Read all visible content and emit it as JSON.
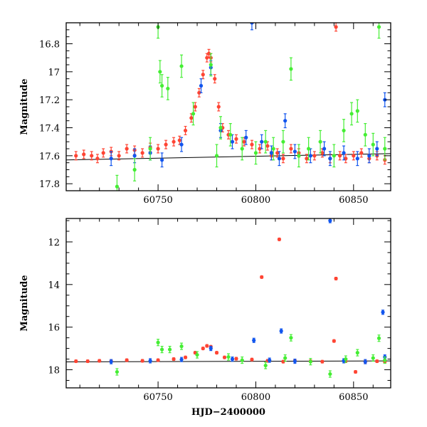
{
  "chart_data": [
    {
      "type": "scatter",
      "panel": "top",
      "title": "",
      "xlabel": "",
      "ylabel": "Magnitude",
      "xlim": [
        60703,
        60869
      ],
      "ylim": [
        17.85,
        16.65
      ],
      "y_inverted": true,
      "x_ticks": [
        60750,
        60800,
        60850
      ],
      "y_ticks": [
        16.8,
        17,
        17.2,
        17.4,
        17.6,
        17.8
      ],
      "y_tick_labels": [
        "16.8",
        "17",
        "17.2",
        "17.4",
        "17.6",
        "17.8"
      ],
      "reference_line": {
        "start": [
          60703,
          17.63
        ],
        "end": [
          60869,
          17.585
        ]
      },
      "series": [
        {
          "color": "#ff4433",
          "error_bar": 0.03,
          "points": [
            [
              60708,
              17.6
            ],
            [
              60712,
              17.59
            ],
            [
              60716,
              17.6
            ],
            [
              60719,
              17.62
            ],
            [
              60722,
              17.58
            ],
            [
              60726,
              17.57
            ],
            [
              60730,
              17.6
            ],
            [
              60734,
              17.55
            ],
            [
              60738,
              17.56
            ],
            [
              60742,
              17.58
            ],
            [
              60746,
              17.54
            ],
            [
              60750,
              17.55
            ],
            [
              60754,
              17.52
            ],
            [
              60758,
              17.5
            ],
            [
              60761,
              17.49
            ],
            [
              60764,
              17.42
            ],
            [
              60767,
              17.33
            ],
            [
              60769,
              17.25
            ],
            [
              60771,
              17.15
            ],
            [
              60773,
              17.02
            ],
            [
              60775,
              16.9
            ],
            [
              60776,
              16.87
            ],
            [
              60777,
              16.9
            ],
            [
              60779,
              17.05
            ],
            [
              60781,
              17.25
            ],
            [
              60783,
              17.4
            ],
            [
              60786,
              17.45
            ],
            [
              60790,
              17.48
            ],
            [
              60794,
              17.5
            ],
            [
              60798,
              17.52
            ],
            [
              60802,
              17.55
            ],
            [
              60806,
              17.53
            ],
            [
              60808,
              17.6
            ],
            [
              60811,
              17.58
            ],
            [
              60814,
              17.62
            ],
            [
              60818,
              17.55
            ],
            [
              60822,
              17.58
            ],
            [
              60826,
              17.62
            ],
            [
              60830,
              17.6
            ],
            [
              60834,
              17.58
            ],
            [
              60838,
              17.62
            ],
            [
              60841,
              16.68
            ],
            [
              60843,
              17.6
            ],
            [
              60846,
              17.62
            ],
            [
              60850,
              17.6
            ],
            [
              60854,
              17.58
            ],
            [
              60858,
              17.62
            ],
            [
              60862,
              17.6
            ],
            [
              60866,
              17.63
            ]
          ]
        },
        {
          "color": "#1155ee",
          "error_bar": 0.05,
          "points": [
            [
              60726,
              17.62
            ],
            [
              60738,
              17.6
            ],
            [
              60746,
              17.58
            ],
            [
              60752,
              17.63
            ],
            [
              60762,
              17.52
            ],
            [
              60772,
              17.1
            ],
            [
              60777,
              16.97
            ],
            [
              60782,
              17.42
            ],
            [
              60788,
              17.5
            ],
            [
              60795,
              17.47
            ],
            [
              60798,
              16.65
            ],
            [
              60803,
              17.5
            ],
            [
              60808,
              17.58
            ],
            [
              60812,
              17.62
            ],
            [
              60815,
              17.35
            ],
            [
              60820,
              17.57
            ],
            [
              60828,
              17.6
            ],
            [
              60835,
              17.55
            ],
            [
              60838,
              17.62
            ],
            [
              60845,
              17.58
            ],
            [
              60852,
              17.62
            ],
            [
              60858,
              17.6
            ],
            [
              60862,
              17.55
            ],
            [
              60866,
              17.2
            ]
          ]
        },
        {
          "color": "#44ee33",
          "error_bar": 0.08,
          "points": [
            [
              60729,
              17.82
            ],
            [
              60738,
              17.7
            ],
            [
              60746,
              17.55
            ],
            [
              60750,
              16.68
            ],
            [
              60751,
              17.0
            ],
            [
              60752,
              17.1
            ],
            [
              60755,
              17.12
            ],
            [
              60762,
              16.96
            ],
            [
              60768,
              17.3
            ],
            [
              60777,
              16.95
            ],
            [
              60780,
              17.6
            ],
            [
              60782,
              17.4
            ],
            [
              60787,
              17.45
            ],
            [
              60793,
              17.55
            ],
            [
              60800,
              17.58
            ],
            [
              60805,
              17.5
            ],
            [
              60809,
              17.55
            ],
            [
              60814,
              17.5
            ],
            [
              60818,
              16.98
            ],
            [
              60822,
              17.6
            ],
            [
              60827,
              17.55
            ],
            [
              60833,
              17.5
            ],
            [
              60840,
              17.6
            ],
            [
              60845,
              17.42
            ],
            [
              60849,
              17.3
            ],
            [
              60852,
              17.28
            ],
            [
              60856,
              17.45
            ],
            [
              60860,
              17.52
            ],
            [
              60863,
              16.68
            ],
            [
              60866,
              17.55
            ]
          ]
        }
      ]
    },
    {
      "type": "scatter",
      "panel": "bottom",
      "title": "",
      "xlabel": "HJD−2400000",
      "ylabel": "Magnitude",
      "xlim": [
        60703,
        60869
      ],
      "ylim": [
        18.85,
        10.9
      ],
      "y_inverted": true,
      "x_ticks": [
        60750,
        60800,
        60850
      ],
      "y_ticks": [
        12,
        14,
        16,
        18
      ],
      "reference_line": {
        "start": [
          60703,
          17.63
        ],
        "end": [
          60869,
          17.585
        ]
      },
      "series": [
        {
          "color": "#ff4433",
          "error_bar": 0.06,
          "points": [
            [
              60708,
              17.6
            ],
            [
              60714,
              17.6
            ],
            [
              60720,
              17.58
            ],
            [
              60726,
              17.6
            ],
            [
              60734,
              17.55
            ],
            [
              60742,
              17.58
            ],
            [
              60750,
              17.55
            ],
            [
              60758,
              17.5
            ],
            [
              60764,
              17.42
            ],
            [
              60769,
              17.2
            ],
            [
              60773,
              17.0
            ],
            [
              60775,
              16.88
            ],
            [
              60777,
              16.92
            ],
            [
              60780,
              17.2
            ],
            [
              60784,
              17.42
            ],
            [
              60790,
              17.48
            ],
            [
              60798,
              17.52
            ],
            [
              60803,
              13.65
            ],
            [
              60806,
              17.58
            ],
            [
              60812,
              11.88
            ],
            [
              60814,
              17.62
            ],
            [
              60820,
              17.58
            ],
            [
              60828,
              17.6
            ],
            [
              60834,
              17.62
            ],
            [
              60840,
              16.65
            ],
            [
              60841,
              13.72
            ],
            [
              60846,
              17.6
            ],
            [
              60851,
              18.1
            ],
            [
              60856,
              17.62
            ],
            [
              60862,
              17.6
            ],
            [
              60866,
              17.62
            ]
          ]
        },
        {
          "color": "#1155ee",
          "error_bar": 0.1,
          "points": [
            [
              60726,
              17.62
            ],
            [
              60746,
              17.58
            ],
            [
              60762,
              17.52
            ],
            [
              60777,
              17.0
            ],
            [
              60788,
              17.5
            ],
            [
              60799,
              16.62
            ],
            [
              60807,
              17.55
            ],
            [
              60813,
              16.18
            ],
            [
              60820,
              17.6
            ],
            [
              60838,
              11.0
            ],
            [
              60845,
              17.58
            ],
            [
              60856,
              17.62
            ],
            [
              60865,
              15.3
            ],
            [
              60866,
              17.4
            ]
          ]
        },
        {
          "color": "#44ee33",
          "error_bar": 0.15,
          "points": [
            [
              60729,
              18.1
            ],
            [
              60750,
              16.72
            ],
            [
              60752,
              17.05
            ],
            [
              60756,
              17.05
            ],
            [
              60762,
              16.9
            ],
            [
              60770,
              17.3
            ],
            [
              60786,
              17.4
            ],
            [
              60793,
              17.55
            ],
            [
              60805,
              17.8
            ],
            [
              60815,
              17.45
            ],
            [
              60818,
              16.5
            ],
            [
              60828,
              17.62
            ],
            [
              60838,
              18.2
            ],
            [
              60846,
              17.5
            ],
            [
              60852,
              17.2
            ],
            [
              60860,
              17.45
            ],
            [
              60863,
              16.52
            ],
            [
              60866,
              17.55
            ]
          ]
        }
      ]
    }
  ]
}
